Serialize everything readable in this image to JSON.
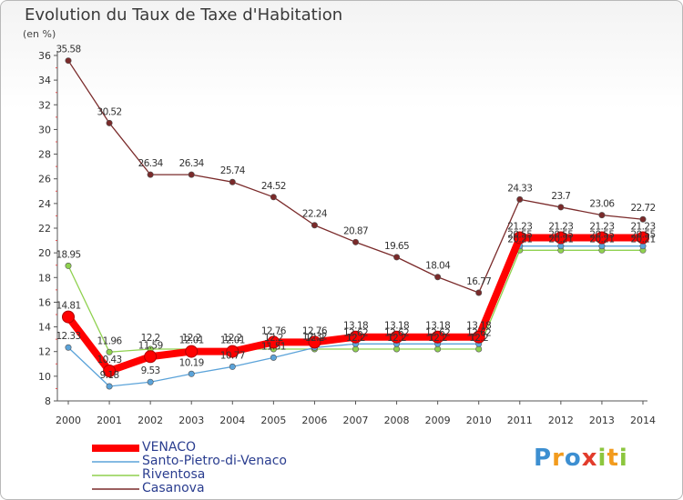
{
  "chart_data": {
    "type": "line",
    "title": "Evolution du Taux de Taxe d'Habitation",
    "subtitle": "(en %)",
    "x": [
      2000,
      2001,
      2002,
      2003,
      2004,
      2005,
      2006,
      2007,
      2008,
      2009,
      2010,
      2011,
      2012,
      2013,
      2014
    ],
    "ylim": [
      8,
      36
    ],
    "yticks": [
      8,
      10,
      12,
      14,
      16,
      18,
      20,
      22,
      24,
      26,
      28,
      30,
      32,
      34,
      36
    ],
    "grid": false,
    "legend_position": "bottom-left",
    "series": [
      {
        "name": "VENACO",
        "color": "#ff0000",
        "values": [
          14.81,
          10.43,
          11.59,
          12.01,
          12.01,
          12.76,
          12.76,
          13.18,
          13.18,
          13.18,
          13.18,
          21.23,
          21.23,
          21.23,
          21.23
        ],
        "labels": [
          "14.81",
          "10.43",
          "11.59",
          "12.01",
          "12.01",
          "12.76",
          "12.76",
          "13.18",
          "13.18",
          "13.18",
          "13.18",
          "21.23",
          "21.23",
          "21.23",
          "21.23"
        ]
      },
      {
        "name": "Santo-Pietro-di-Venaco",
        "color": "#5ba3d9",
        "values": [
          12.33,
          9.18,
          9.53,
          10.19,
          10.77,
          11.51,
          12.32,
          12.62,
          12.62,
          12.62,
          12.62,
          20.55,
          20.55,
          20.55,
          20.55
        ],
        "labels": [
          "12.33",
          "9.18",
          "9.53",
          "10.19",
          "10.77",
          "11.51",
          "12.32",
          "12.62",
          "12.62",
          "12.62",
          "12.62",
          "20.55",
          "20.55",
          "20.55",
          "20.55"
        ]
      },
      {
        "name": "Riventosa",
        "color": "#8fd14f",
        "values": [
          18.95,
          11.96,
          12.2,
          12.2,
          12.2,
          12.2,
          12.2,
          12.2,
          12.2,
          12.2,
          12.2,
          20.21,
          20.21,
          20.21,
          20.21
        ],
        "labels": [
          "18.95",
          "11.96",
          "12.2",
          "12.2",
          "12.2",
          "12.2",
          "12.2",
          "12.2",
          "12.2",
          "12.2",
          "12.2",
          "20.21",
          "20.21",
          "20.21",
          "20.21"
        ]
      },
      {
        "name": "Casanova",
        "color": "#7a2a2a",
        "values": [
          35.58,
          30.52,
          26.34,
          26.34,
          25.74,
          24.52,
          22.24,
          20.87,
          19.65,
          18.04,
          16.77,
          24.33,
          23.7,
          23.06,
          22.72
        ],
        "labels": [
          "35.58",
          "30.52",
          "26.34",
          "26.34",
          "25.74",
          "24.52",
          "22.24",
          "20.87",
          "19.65",
          "18.04",
          "16.77",
          "24.33",
          "23.7",
          "23.06",
          "22.72"
        ]
      }
    ]
  },
  "brand": {
    "logo_letters": [
      "P",
      "r",
      "o",
      "x",
      "i",
      "t",
      "i"
    ],
    "logo_colors": [
      "#3d8fd1",
      "#f29b1d",
      "#3d8fd1",
      "#e23c2c",
      "#8cc63e",
      "#f29b1d",
      "#8cc63e"
    ]
  }
}
